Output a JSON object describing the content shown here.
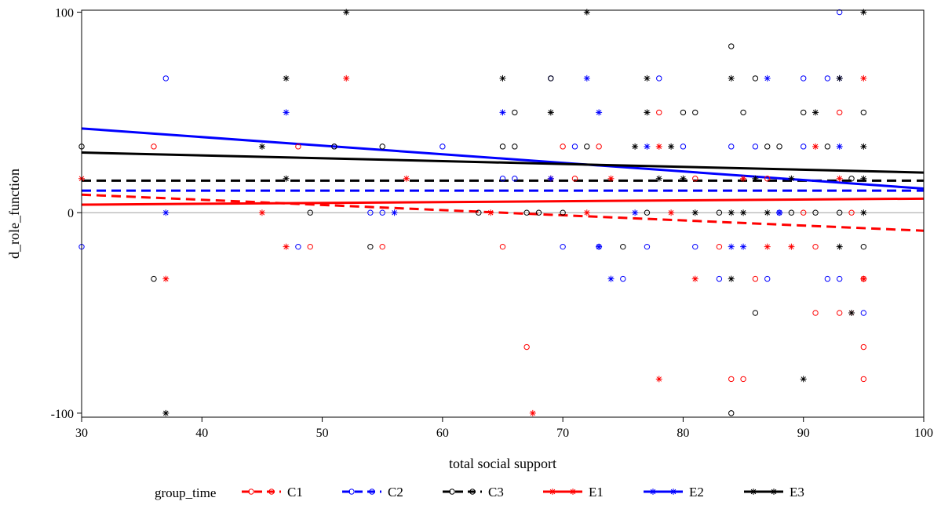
{
  "chart_data": {
    "type": "scatter",
    "xlabel": "total social support",
    "ylabel": "d_role_function",
    "xlim": [
      30,
      100
    ],
    "ylim": [
      -102,
      101
    ],
    "x_ticks": [
      30,
      40,
      50,
      60,
      70,
      80,
      90,
      100
    ],
    "y_ticks": [
      -100,
      0,
      100
    ],
    "reference_line_y": 0,
    "grid": false,
    "legend": {
      "title": "group_time",
      "position": "bottom"
    },
    "series": [
      {
        "name": "C1",
        "color": "#ff0000",
        "marker": "circle",
        "line_style": "dashed",
        "fit": [
          [
            30,
            9
          ],
          [
            100,
            -9
          ]
        ],
        "points": [
          [
            36,
            33
          ],
          [
            48,
            33
          ],
          [
            49,
            -17
          ],
          [
            55,
            -17
          ],
          [
            65,
            -17
          ],
          [
            67,
            -67
          ],
          [
            70,
            33
          ],
          [
            71,
            17
          ],
          [
            73,
            33
          ],
          [
            78,
            50
          ],
          [
            81,
            17
          ],
          [
            83,
            -17
          ],
          [
            84,
            -83
          ],
          [
            85,
            -83
          ],
          [
            86,
            -33
          ],
          [
            87,
            17
          ],
          [
            90,
            0
          ],
          [
            91,
            -17
          ],
          [
            91,
            -50
          ],
          [
            93,
            50
          ],
          [
            93,
            -50
          ],
          [
            94,
            0
          ],
          [
            95,
            -67
          ],
          [
            95,
            -83
          ],
          [
            95,
            -33
          ]
        ]
      },
      {
        "name": "C2",
        "color": "#0000ff",
        "marker": "circle",
        "line_style": "dashed",
        "fit": [
          [
            30,
            11
          ],
          [
            100,
            11
          ]
        ],
        "points": [
          [
            30,
            -17
          ],
          [
            37,
            67
          ],
          [
            48,
            -17
          ],
          [
            51,
            33
          ],
          [
            54,
            0
          ],
          [
            55,
            0
          ],
          [
            60,
            33
          ],
          [
            65,
            17
          ],
          [
            66,
            17
          ],
          [
            69,
            67
          ],
          [
            70,
            -17
          ],
          [
            71,
            33
          ],
          [
            73,
            -17
          ],
          [
            75,
            -33
          ],
          [
            77,
            -17
          ],
          [
            78,
            67
          ],
          [
            80,
            33
          ],
          [
            81,
            -17
          ],
          [
            83,
            -33
          ],
          [
            84,
            33
          ],
          [
            86,
            33
          ],
          [
            87,
            -33
          ],
          [
            88,
            0
          ],
          [
            90,
            67
          ],
          [
            90,
            33
          ],
          [
            92,
            67
          ],
          [
            92,
            -33
          ],
          [
            93,
            100
          ],
          [
            93,
            -33
          ],
          [
            95,
            -50
          ]
        ]
      },
      {
        "name": "C3",
        "color": "#000000",
        "marker": "circle",
        "line_style": "dashed",
        "fit": [
          [
            30,
            16
          ],
          [
            100,
            16
          ]
        ],
        "points": [
          [
            30,
            33
          ],
          [
            36,
            -33
          ],
          [
            49,
            0
          ],
          [
            51,
            33
          ],
          [
            54,
            -17
          ],
          [
            55,
            33
          ],
          [
            63,
            0
          ],
          [
            65,
            33
          ],
          [
            66,
            33
          ],
          [
            66,
            50
          ],
          [
            67,
            0
          ],
          [
            68,
            0
          ],
          [
            69,
            67
          ],
          [
            70,
            0
          ],
          [
            72,
            33
          ],
          [
            75,
            -17
          ],
          [
            77,
            0
          ],
          [
            80,
            50
          ],
          [
            81,
            50
          ],
          [
            83,
            0
          ],
          [
            84,
            83
          ],
          [
            84,
            -100
          ],
          [
            85,
            50
          ],
          [
            86,
            -50
          ],
          [
            86,
            67
          ],
          [
            87,
            33
          ],
          [
            88,
            33
          ],
          [
            89,
            0
          ],
          [
            90,
            50
          ],
          [
            91,
            0
          ],
          [
            92,
            33
          ],
          [
            93,
            0
          ],
          [
            94,
            17
          ],
          [
            95,
            50
          ],
          [
            95,
            -17
          ]
        ]
      },
      {
        "name": "E1",
        "color": "#ff0000",
        "marker": "star",
        "line_style": "solid",
        "fit": [
          [
            30,
            4
          ],
          [
            100,
            7
          ]
        ],
        "points": [
          [
            30,
            17
          ],
          [
            37,
            -33
          ],
          [
            45,
            0
          ],
          [
            47,
            -17
          ],
          [
            52,
            67
          ],
          [
            57,
            17
          ],
          [
            64,
            0
          ],
          [
            67.5,
            -100
          ],
          [
            69,
            17
          ],
          [
            72,
            0
          ],
          [
            74,
            17
          ],
          [
            78,
            -83
          ],
          [
            78,
            33
          ],
          [
            79,
            0
          ],
          [
            81,
            -33
          ],
          [
            85,
            17
          ],
          [
            87,
            -17
          ],
          [
            89,
            -17
          ],
          [
            91,
            33
          ],
          [
            93,
            17
          ],
          [
            94,
            -50
          ],
          [
            95,
            -33
          ],
          [
            95,
            67
          ]
        ]
      },
      {
        "name": "E2",
        "color": "#0000ff",
        "marker": "star",
        "line_style": "solid",
        "fit": [
          [
            30,
            42
          ],
          [
            100,
            12
          ]
        ],
        "points": [
          [
            37,
            0
          ],
          [
            47,
            50
          ],
          [
            56,
            0
          ],
          [
            65,
            50
          ],
          [
            69,
            17
          ],
          [
            72,
            67
          ],
          [
            73,
            -17
          ],
          [
            73,
            50
          ],
          [
            74,
            -33
          ],
          [
            76,
            0
          ],
          [
            77,
            33
          ],
          [
            84,
            -17
          ],
          [
            85,
            -17
          ],
          [
            87,
            67
          ],
          [
            88,
            0
          ],
          [
            93,
            33
          ],
          [
            93,
            67
          ]
        ]
      },
      {
        "name": "E3",
        "color": "#000000",
        "marker": "star",
        "line_style": "solid",
        "fit": [
          [
            30,
            30
          ],
          [
            100,
            20
          ]
        ],
        "points": [
          [
            37,
            -100
          ],
          [
            45,
            33
          ],
          [
            47,
            67
          ],
          [
            47,
            17
          ],
          [
            52,
            100
          ],
          [
            65,
            67
          ],
          [
            69,
            50
          ],
          [
            72,
            100
          ],
          [
            76,
            33
          ],
          [
            77,
            67
          ],
          [
            77,
            50
          ],
          [
            78,
            17
          ],
          [
            79,
            33
          ],
          [
            80,
            17
          ],
          [
            81,
            0
          ],
          [
            84,
            67
          ],
          [
            84,
            0
          ],
          [
            84,
            -33
          ],
          [
            85,
            0
          ],
          [
            86,
            17
          ],
          [
            87,
            0
          ],
          [
            89,
            17
          ],
          [
            90,
            -83
          ],
          [
            91,
            50
          ],
          [
            93,
            67
          ],
          [
            93,
            -17
          ],
          [
            94,
            -50
          ],
          [
            95,
            100
          ],
          [
            95,
            33
          ],
          [
            95,
            0
          ],
          [
            95,
            17
          ]
        ]
      }
    ]
  }
}
